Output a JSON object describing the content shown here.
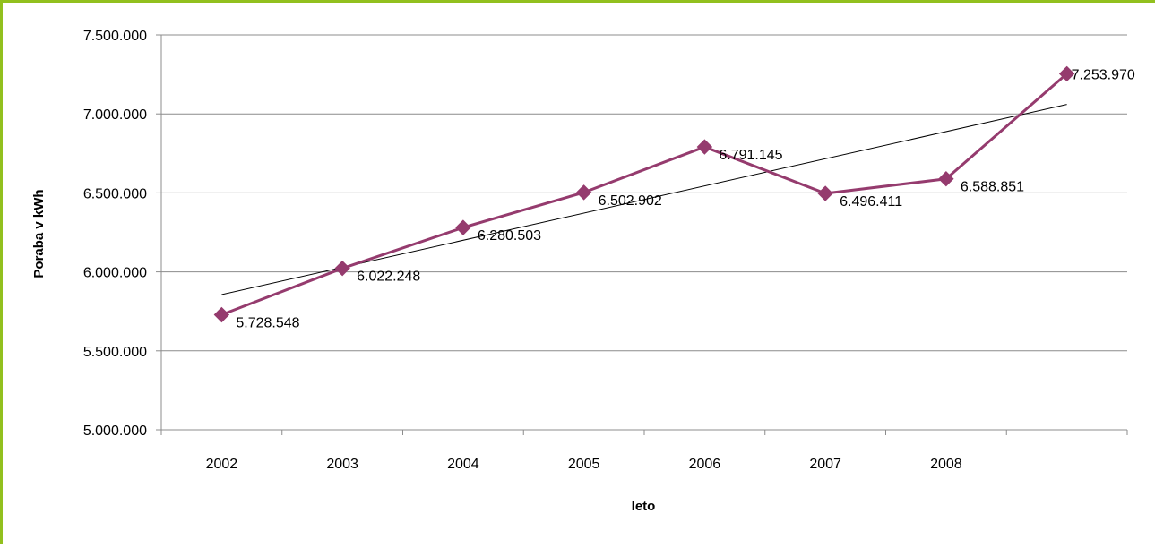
{
  "colors": {
    "frame": "#92c01e",
    "series": "#953b6e",
    "trend": "#000000",
    "grid": "#8c8c8c"
  },
  "chart_data": {
    "type": "line",
    "title": "",
    "xlabel": "leto",
    "ylabel": "Poraba v kWh",
    "categories": [
      "2002",
      "2003",
      "2004",
      "2005",
      "2006",
      "2007",
      "2008",
      ""
    ],
    "series": [
      {
        "values": [
          5728548,
          6022248,
          6280503,
          6502902,
          6791145,
          6496411,
          6588851,
          7253970
        ],
        "labels": [
          "5.728.548",
          "6.022.248",
          "6.280.503",
          "6.502.902",
          "6.791.145",
          "6.496.411",
          "6.588.851",
          "7.253.970"
        ],
        "marker": "diamond"
      }
    ],
    "trendline": {
      "type": "linear"
    },
    "ylim": [
      5000000,
      7500000
    ],
    "yticks": [
      5000000,
      5500000,
      6000000,
      6500000,
      7000000,
      7500000
    ],
    "ytick_labels": [
      "5.000.000",
      "5.500.000",
      "6.000.000",
      "6.500.000",
      "7.000.000",
      "7.500.000"
    ],
    "grid": true,
    "legend": "none"
  }
}
